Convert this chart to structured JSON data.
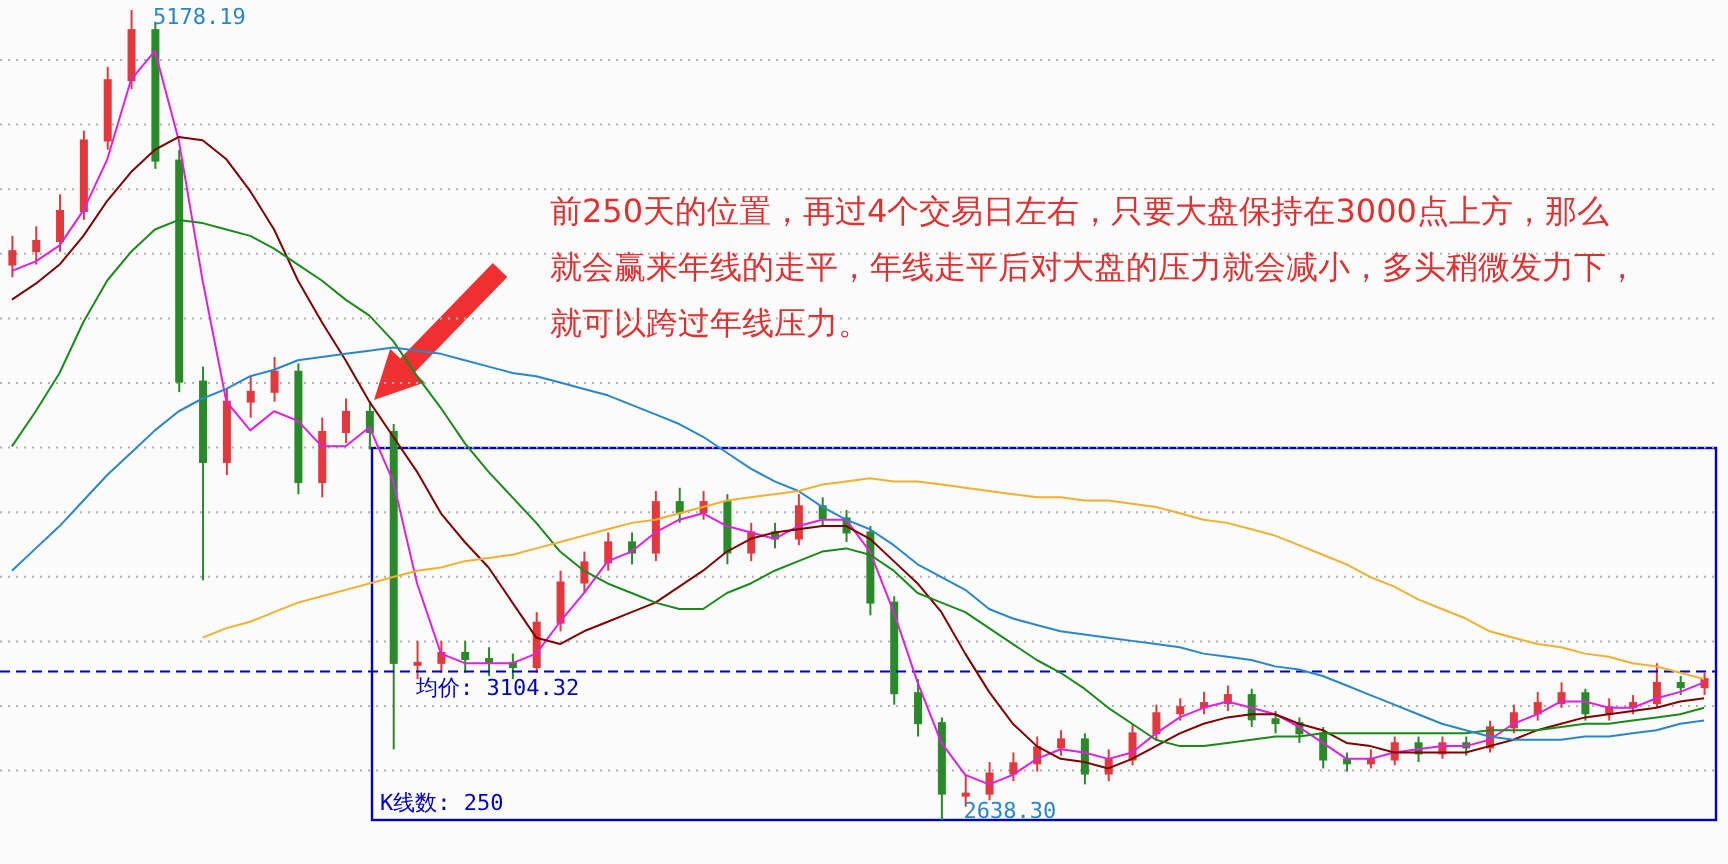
{
  "chart_data": {
    "type": "candlestick",
    "annotations": [
      "前250天的位置，再过4个交易日左右，只要大盘保持在3000点上方，那么就会赢来年线的走平，年线走平后对大盘的压力就会减小，多头稍微发力下，就可以跨过年线压力。",
      "5178.19",
      "2638.30",
      "K线数: 250"
    ],
    "categories": [
      null,
      null,
      null,
      null,
      null,
      null,
      null,
      null,
      null,
      null,
      null,
      null,
      null,
      null,
      null,
      null,
      null,
      null,
      null,
      null,
      null,
      null,
      null,
      null,
      null,
      null,
      null,
      null,
      null,
      null,
      null,
      null,
      null,
      null,
      null,
      null,
      null,
      null,
      null,
      null,
      null,
      null,
      null,
      null,
      null,
      null,
      null,
      null,
      null,
      null,
      null,
      null,
      null,
      null,
      null,
      null,
      null,
      null,
      null,
      null,
      null,
      null,
      null,
      null,
      null,
      null,
      null,
      null,
      null,
      null,
      null,
      null
    ],
    "ohlc": [
      [
        4380,
        4470,
        4340,
        4422
      ],
      [
        4422,
        4500,
        4380,
        4454
      ],
      [
        4454,
        4600,
        4420,
        4548
      ],
      [
        4548,
        4800,
        4520,
        4769
      ],
      [
        4769,
        5000,
        4740,
        4958
      ],
      [
        4958,
        5178.19,
        4930,
        5115
      ],
      [
        5115,
        5140,
        4680,
        4706
      ],
      [
        4706,
        4740,
        3980,
        4013
      ],
      [
        4013,
        4060,
        3390,
        3761
      ],
      [
        3761,
        3990,
        3720,
        3950
      ],
      [
        3950,
        4030,
        3900,
        3981
      ],
      [
        3981,
        4090,
        3950,
        4044
      ],
      [
        4044,
        4070,
        3660,
        3698
      ],
      [
        3698,
        3900,
        3650,
        3855
      ],
      [
        3855,
        3960,
        3820,
        3918
      ],
      [
        3918,
        3950,
        3800,
        3855
      ],
      [
        3855,
        3880,
        2860,
        3131
      ],
      [
        3131,
        3200,
        3080,
        3131
      ],
      [
        3131,
        3200,
        3100,
        3162
      ],
      [
        3162,
        3200,
        3100,
        3143
      ],
      [
        3143,
        3180,
        3090,
        3131
      ],
      [
        3131,
        3160,
        3080,
        3118
      ],
      [
        3118,
        3290,
        3100,
        3257
      ],
      [
        3257,
        3420,
        3230,
        3383
      ],
      [
        3383,
        3480,
        3350,
        3446
      ],
      [
        3446,
        3540,
        3420,
        3509
      ],
      [
        3509,
        3540,
        3440,
        3477
      ],
      [
        3477,
        3670,
        3450,
        3635
      ],
      [
        3635,
        3680,
        3570,
        3603
      ],
      [
        3603,
        3670,
        3580,
        3635
      ],
      [
        3635,
        3660,
        3440,
        3477
      ],
      [
        3477,
        3570,
        3450,
        3540
      ],
      [
        3540,
        3570,
        3490,
        3521
      ],
      [
        3521,
        3660,
        3500,
        3622
      ],
      [
        3622,
        3650,
        3560,
        3584
      ],
      [
        3584,
        3610,
        3510,
        3540
      ],
      [
        3540,
        3560,
        3280,
        3320
      ],
      [
        3320,
        3340,
        3000,
        3036
      ],
      [
        3036,
        3080,
        2900,
        2942
      ],
      [
        2942,
        2960,
        2638.3,
        2721
      ],
      [
        2721,
        2780,
        2680,
        2721
      ],
      [
        2721,
        2820,
        2700,
        2784
      ],
      [
        2784,
        2850,
        2760,
        2816
      ],
      [
        2816,
        2900,
        2790,
        2866
      ],
      [
        2866,
        2920,
        2840,
        2891
      ],
      [
        2891,
        2910,
        2750,
        2784
      ],
      [
        2784,
        2860,
        2760,
        2828
      ],
      [
        2828,
        2940,
        2810,
        2910
      ],
      [
        2910,
        3000,
        2890,
        2973
      ],
      [
        2973,
        3020,
        2950,
        2992
      ],
      [
        2992,
        3040,
        2970,
        3005
      ],
      [
        3005,
        3060,
        2980,
        3030
      ],
      [
        3030,
        3050,
        2930,
        2954
      ],
      [
        2954,
        2980,
        2910,
        2942
      ],
      [
        2942,
        2960,
        2880,
        2910
      ],
      [
        2910,
        2930,
        2800,
        2828
      ],
      [
        2828,
        2850,
        2790,
        2816
      ],
      [
        2816,
        2860,
        2800,
        2828
      ],
      [
        2828,
        2900,
        2810,
        2879
      ],
      [
        2879,
        2900,
        2820,
        2847
      ],
      [
        2847,
        2900,
        2830,
        2879
      ],
      [
        2879,
        2900,
        2840,
        2866
      ],
      [
        2866,
        2950,
        2850,
        2929
      ],
      [
        2929,
        3000,
        2910,
        2973
      ],
      [
        2973,
        3040,
        2950,
        3005
      ],
      [
        3005,
        3070,
        2990,
        3036
      ],
      [
        3036,
        3050,
        2950,
        2973
      ],
      [
        2973,
        3020,
        2950,
        2992
      ],
      [
        2992,
        3030,
        2970,
        3005
      ],
      [
        3005,
        3130,
        2990,
        3068
      ],
      [
        3068,
        3090,
        3030,
        3055
      ],
      [
        3055,
        3100,
        3030,
        3080
      ]
    ],
    "colors": [
      "#e0393e",
      "#e0393e",
      "#e0393e",
      "#e0393e",
      "#e0393e",
      "#e0393e",
      "#2a8a2a",
      "#2a8a2a",
      "#2a8a2a",
      "#e0393e",
      "#e0393e",
      "#e0393e",
      "#2a8a2a",
      "#e0393e",
      "#e0393e",
      "#2a8a2a",
      "#2a8a2a",
      "#e0393e",
      "#e0393e",
      "#2a8a2a",
      "#2a8a2a",
      "#2a8a2a",
      "#e0393e",
      "#e0393e",
      "#e0393e",
      "#e0393e",
      "#2a8a2a",
      "#e0393e",
      "#2a8a2a",
      "#e0393e",
      "#2a8a2a",
      "#e0393e",
      "#2a8a2a",
      "#e0393e",
      "#2a8a2a",
      "#2a8a2a",
      "#2a8a2a",
      "#2a8a2a",
      "#2a8a2a",
      "#2a8a2a",
      "#e0393e",
      "#e0393e",
      "#e0393e",
      "#e0393e",
      "#e0393e",
      "#2a8a2a",
      "#e0393e",
      "#e0393e",
      "#e0393e",
      "#e0393e",
      "#e0393e",
      "#e0393e",
      "#2a8a2a",
      "#2a8a2a",
      "#2a8a2a",
      "#2a8a2a",
      "#2a8a2a",
      "#e0393e",
      "#e0393e",
      "#2a8a2a",
      "#e0393e",
      "#2a8a2a",
      "#e0393e",
      "#e0393e",
      "#e0393e",
      "#e0393e",
      "#2a8a2a",
      "#e0393e",
      "#e0393e",
      "#e0393e",
      "#2a8a2a",
      "#e0393e"
    ],
    "series": [
      {
        "type": "line",
        "color": "#e020e0",
        "values": [
          4360,
          4390,
          4440,
          4550,
          4710,
          4960,
          5050,
          4770,
          4330,
          3950,
          3860,
          3920,
          3890,
          3810,
          3810,
          3870,
          3700,
          3380,
          3160,
          3130,
          3130,
          3130,
          3160,
          3260,
          3350,
          3450,
          3480,
          3540,
          3580,
          3600,
          3560,
          3540,
          3520,
          3560,
          3580,
          3580,
          3480,
          3290,
          3070,
          2880,
          2780,
          2750,
          2780,
          2830,
          2860,
          2850,
          2830,
          2850,
          2910,
          2960,
          2990,
          3010,
          2990,
          2970,
          2930,
          2880,
          2830,
          2830,
          2850,
          2860,
          2870,
          2870,
          2890,
          2940,
          2970,
          3010,
          3010,
          2990,
          2990,
          3020,
          3040,
          3070
        ]
      },
      {
        "type": "line",
        "color": "#800000",
        "values": [
          4270,
          4320,
          4380,
          4470,
          4580,
          4670,
          4740,
          4780,
          4770,
          4710,
          4610,
          4490,
          4330,
          4200,
          4080,
          3950,
          3840,
          3730,
          3600,
          3510,
          3430,
          3320,
          3210,
          3190,
          3230,
          3260,
          3290,
          3320,
          3370,
          3420,
          3480,
          3520,
          3540,
          3550,
          3560,
          3560,
          3520,
          3450,
          3380,
          3290,
          3160,
          3040,
          2940,
          2870,
          2830,
          2820,
          2800,
          2830,
          2870,
          2910,
          2940,
          2960,
          2970,
          2970,
          2940,
          2920,
          2880,
          2870,
          2850,
          2850,
          2850,
          2850,
          2870,
          2890,
          2920,
          2940,
          2960,
          2970,
          2980,
          2990,
          3010,
          3020
        ]
      },
      {
        "type": "line",
        "color": "#1a8a1a",
        "values": [
          3810,
          3920,
          4040,
          4200,
          4330,
          4420,
          4490,
          4520,
          4510,
          4490,
          4470,
          4430,
          4380,
          4330,
          4270,
          4220,
          4140,
          4030,
          3930,
          3820,
          3730,
          3650,
          3570,
          3480,
          3420,
          3380,
          3350,
          3320,
          3300,
          3300,
          3350,
          3380,
          3420,
          3450,
          3480,
          3490,
          3470,
          3420,
          3350,
          3320,
          3290,
          3240,
          3190,
          3140,
          3100,
          3050,
          2990,
          2940,
          2890,
          2870,
          2870,
          2880,
          2890,
          2900,
          2900,
          2910,
          2910,
          2910,
          2910,
          2910,
          2910,
          2910,
          2920,
          2920,
          2920,
          2930,
          2940,
          2940,
          2950,
          2960,
          2970,
          2990
        ]
      },
      {
        "type": "line",
        "color": "#2b86c8",
        "values": [
          3420,
          3490,
          3560,
          3640,
          3720,
          3790,
          3860,
          3920,
          3960,
          3990,
          4030,
          4050,
          4080,
          4090,
          4100,
          4110,
          4120,
          4110,
          4100,
          4080,
          4060,
          4040,
          4030,
          4010,
          3990,
          3970,
          3940,
          3910,
          3880,
          3840,
          3790,
          3740,
          3700,
          3670,
          3620,
          3580,
          3550,
          3500,
          3440,
          3400,
          3360,
          3300,
          3270,
          3250,
          3230,
          3220,
          3210,
          3200,
          3190,
          3180,
          3160,
          3150,
          3140,
          3120,
          3110,
          3090,
          3060,
          3030,
          3000,
          2970,
          2940,
          2920,
          2900,
          2890,
          2890,
          2890,
          2900,
          2900,
          2910,
          2920,
          2940,
          2950
        ]
      },
      {
        "type": "line",
        "color": "#f0b030",
        "values": [
          null,
          null,
          null,
          null,
          null,
          null,
          null,
          null,
          3210,
          3240,
          3260,
          3290,
          3320,
          3340,
          3360,
          3380,
          3400,
          3420,
          3430,
          3450,
          3460,
          3470,
          3490,
          3510,
          3530,
          3550,
          3570,
          3580,
          3600,
          3620,
          3640,
          3650,
          3660,
          3670,
          3690,
          3700,
          3710,
          3700,
          3700,
          3690,
          3680,
          3670,
          3660,
          3650,
          3650,
          3640,
          3640,
          3630,
          3620,
          3600,
          3580,
          3570,
          3550,
          3530,
          3500,
          3470,
          3440,
          3400,
          3370,
          3330,
          3300,
          3270,
          3230,
          3210,
          3190,
          3180,
          3160,
          3150,
          3130,
          3120,
          3100,
          3080
        ]
      }
    ],
    "ref_lines": [
      {
        "axis": "y",
        "value": 3104.32,
        "label": "均价: 3104.32",
        "color": "#0000c0",
        "line_style": "dashed"
      }
    ],
    "grid": "y",
    "marker": "none"
  }
}
